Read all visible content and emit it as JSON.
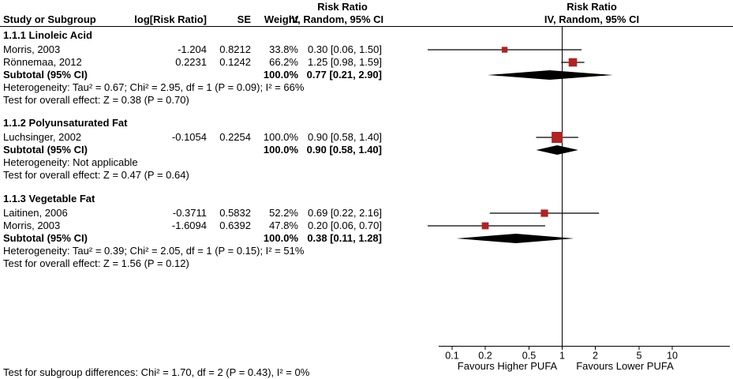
{
  "chart_data": {
    "type": "forest",
    "effect_measure": "Risk Ratio",
    "method_label": "IV, Random, 95% CI",
    "marker_color": "#B22222",
    "diamond_color": "#000000",
    "columns": {
      "study": "Study or Subgroup",
      "log_rr": "log[Risk Ratio]",
      "se": "SE",
      "weight": "Weight",
      "ci_header_top": "Risk Ratio",
      "ci_header_bottom": "IV, Random, 95% CI",
      "plot_header_top": "Risk Ratio",
      "plot_header_bottom": "IV, Random, 95% CI"
    },
    "axis": {
      "scale": "log10",
      "ticks": [
        0.1,
        0.2,
        0.5,
        1,
        2,
        5,
        10
      ],
      "tick_labels": [
        "0.1",
        "0.2",
        "0.5",
        "1",
        "2",
        "5",
        "10"
      ],
      "favours_left": "Favours Higher PUFA",
      "favours_right": "Favours Lower PUFA"
    },
    "sections": [
      {
        "id": "1.1.1",
        "title": "1.1.1 Linoleic Acid",
        "studies": [
          {
            "name": "Morris, 2003",
            "log_rr": "-1.204",
            "se": "0.8212",
            "weight": "33.8%",
            "weight_pct": 33.8,
            "est": 0.3,
            "lo": 0.06,
            "hi": 1.5,
            "ci_label": "0.30 [0.06, 1.50]"
          },
          {
            "name": "Rönnemaa, 2012",
            "log_rr": "0.2231",
            "se": "0.1242",
            "weight": "66.2%",
            "weight_pct": 66.2,
            "est": 1.25,
            "lo": 0.98,
            "hi": 1.59,
            "ci_label": "1.25 [0.98, 1.59]"
          }
        ],
        "subtotal": {
          "label": "Subtotal (95% CI)",
          "weight": "100.0%",
          "est": 0.77,
          "lo": 0.21,
          "hi": 2.9,
          "ci_label": "0.77 [0.21, 2.90]"
        },
        "heterogeneity": "Heterogeneity: Tau² = 0.67; Chi² = 2.95, df = 1 (P = 0.09); I² = 66%",
        "overall_effect": "Test for overall effect: Z = 0.38 (P = 0.70)"
      },
      {
        "id": "1.1.2",
        "title": "1.1.2 Polyunsaturated Fat",
        "studies": [
          {
            "name": "Luchsinger, 2002",
            "log_rr": "-0.1054",
            "se": "0.2254",
            "weight": "100.0%",
            "weight_pct": 100.0,
            "est": 0.9,
            "lo": 0.58,
            "hi": 1.4,
            "ci_label": "0.90 [0.58, 1.40]"
          }
        ],
        "subtotal": {
          "label": "Subtotal (95% CI)",
          "weight": "100.0%",
          "est": 0.9,
          "lo": 0.58,
          "hi": 1.4,
          "ci_label": "0.90 [0.58, 1.40]"
        },
        "heterogeneity": "Heterogeneity: Not applicable",
        "overall_effect": "Test for overall effect: Z = 0.47 (P = 0.64)"
      },
      {
        "id": "1.1.3",
        "title": "1.1.3 Vegetable Fat",
        "studies": [
          {
            "name": "Laitinen, 2006",
            "log_rr": "-0.3711",
            "se": "0.5832",
            "weight": "52.2%",
            "weight_pct": 52.2,
            "est": 0.69,
            "lo": 0.22,
            "hi": 2.16,
            "ci_label": "0.69 [0.22, 2.16]"
          },
          {
            "name": "Morris, 2003",
            "log_rr": "-1.6094",
            "se": "0.6392",
            "weight": "47.8%",
            "weight_pct": 47.8,
            "est": 0.2,
            "lo": 0.06,
            "hi": 0.7,
            "ci_label": "0.20 [0.06, 0.70]"
          }
        ],
        "subtotal": {
          "label": "Subtotal (95% CI)",
          "weight": "100.0%",
          "est": 0.38,
          "lo": 0.11,
          "hi": 1.28,
          "ci_label": "0.38 [0.11, 1.28]"
        },
        "heterogeneity": "Heterogeneity: Tau² = 0.39; Chi² = 2.05, df = 1 (P = 0.15); I² = 51%",
        "overall_effect": "Test for overall effect: Z = 1.56 (P = 0.12)"
      }
    ],
    "subgroup_difference": "Test for subgroup differences: Chi² = 1.70, df = 2 (P = 0.43), I² = 0%"
  }
}
